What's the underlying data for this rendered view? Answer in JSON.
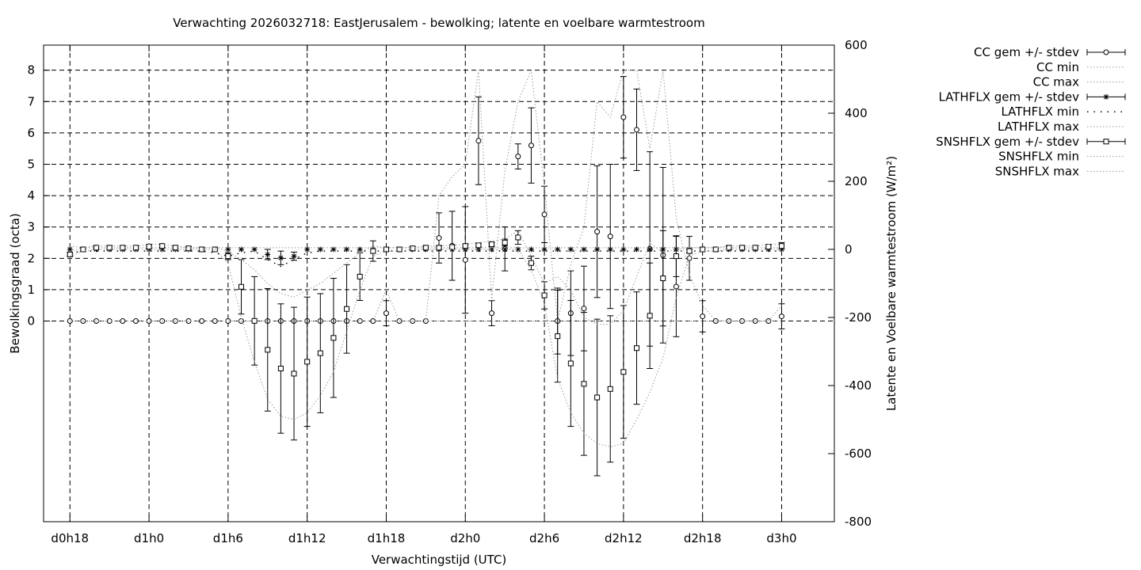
{
  "chart_data": {
    "type": "line",
    "title": "Verwachting 2026032718: EastJerusalem - bewolking; latente en voelbare warmtestroom",
    "xlabel": "Verwachtingstijd (UTC)",
    "ylabel": "Bewolkingsgraad (octa)",
    "y2label": "Latente en Voelbare warmtestroom (W/m²)",
    "xlim": [
      -2,
      58
    ],
    "ylim": [
      -6.4,
      8.8
    ],
    "y2lim": [
      -800,
      600
    ],
    "grid": true,
    "legend": "outside-right",
    "xticks": [
      {
        "x": 0,
        "label": "d0h18"
      },
      {
        "x": 6,
        "label": "d1h0"
      },
      {
        "x": 12,
        "label": "d1h6"
      },
      {
        "x": 18,
        "label": "d1h12"
      },
      {
        "x": 24,
        "label": "d1h18"
      },
      {
        "x": 30,
        "label": "d2h0"
      },
      {
        "x": 36,
        "label": "d2h6"
      },
      {
        "x": 42,
        "label": "d2h12"
      },
      {
        "x": 48,
        "label": "d2h18"
      },
      {
        "x": 54,
        "label": "d3h0"
      }
    ],
    "yticks": [
      0,
      1,
      2,
      3,
      4,
      5,
      6,
      7,
      8
    ],
    "y2ticks": [
      -800,
      -600,
      -400,
      -200,
      0,
      200,
      400,
      600
    ],
    "x": [
      0,
      1,
      2,
      3,
      4,
      5,
      6,
      7,
      8,
      9,
      10,
      11,
      12,
      13,
      14,
      15,
      16,
      17,
      18,
      19,
      20,
      21,
      22,
      23,
      24,
      25,
      26,
      27,
      28,
      29,
      30,
      31,
      32,
      33,
      34,
      35,
      36,
      37,
      38,
      39,
      40,
      41,
      42,
      43,
      44,
      45,
      46,
      47,
      48,
      49,
      50,
      51,
      52,
      53,
      54
    ],
    "series": [
      {
        "name": "CC gem +/- stdev",
        "axis": "y",
        "style": "errorbars-circle",
        "mean": [
          0,
          0,
          0,
          0,
          0,
          0,
          0,
          0,
          0,
          0,
          0,
          0,
          0,
          0,
          0,
          0,
          0,
          0,
          0,
          0,
          0,
          0,
          0,
          0,
          0.25,
          0,
          0,
          0,
          2.65,
          2.4,
          1.95,
          5.75,
          0.25,
          2.3,
          5.25,
          5.6,
          3.4,
          0,
          0.25,
          0.4,
          2.85,
          2.7,
          6.5,
          6.1,
          2.3,
          2.1,
          1.1,
          2.0,
          0.15,
          0,
          0,
          0,
          0,
          0,
          0.15
        ],
        "stdev": [
          0,
          0,
          0,
          0,
          0,
          0,
          0,
          0,
          0,
          0,
          0,
          0,
          0,
          0,
          0,
          0,
          0,
          0,
          0,
          0,
          0,
          0,
          0,
          0,
          0.4,
          0,
          0,
          0,
          0.8,
          1.1,
          1.7,
          1.4,
          0.4,
          0.7,
          0.4,
          1.2,
          0.9,
          1.05,
          1.35,
          1.35,
          2.1,
          2.3,
          1.3,
          1.3,
          3.1,
          2.8,
          1.6,
          0.7,
          0.5,
          0,
          0,
          0,
          0,
          0,
          0.4
        ]
      },
      {
        "name": "CC min",
        "axis": "y",
        "style": "dotted",
        "values": [
          0,
          0,
          0,
          0,
          0,
          0,
          0,
          0,
          0,
          0,
          0,
          0,
          0,
          0,
          0,
          0,
          0,
          0,
          0,
          0,
          0,
          0,
          0,
          0,
          0,
          0,
          0,
          0,
          0,
          0,
          0,
          0,
          0,
          0,
          0,
          0,
          0,
          0,
          0,
          0,
          0,
          0,
          0,
          0,
          0,
          0,
          0,
          0,
          0,
          0,
          0,
          0,
          0,
          0,
          0
        ]
      },
      {
        "name": "CC max",
        "axis": "y",
        "style": "dotted",
        "values": [
          0,
          0,
          0,
          0,
          0,
          0,
          0,
          0,
          0,
          0,
          0,
          0,
          0,
          0,
          0,
          0,
          0,
          0,
          0,
          0,
          0,
          0,
          0,
          0,
          1,
          0,
          0,
          0,
          4,
          4.6,
          5,
          8,
          0.7,
          4.8,
          7,
          8,
          4.3,
          0,
          1.8,
          3,
          7,
          6.5,
          8,
          8,
          5.5,
          8,
          3.3,
          1.5,
          0.5,
          0,
          0,
          0,
          0,
          0,
          0.5
        ]
      },
      {
        "name": "LATHFLX gem +/- stdev",
        "axis": "y2",
        "style": "errorbars-star",
        "mean": [
          0,
          0,
          0,
          0,
          0,
          0,
          0,
          0,
          0,
          0,
          0,
          0,
          0,
          0,
          0,
          -15,
          -25,
          -20,
          0,
          0,
          0,
          0,
          0,
          0,
          0,
          0,
          0,
          0,
          0,
          0,
          0,
          0,
          0,
          0,
          0,
          0,
          0,
          0,
          0,
          0,
          0,
          0,
          0,
          0,
          0,
          0,
          0,
          0,
          0,
          0,
          0,
          0,
          0,
          0,
          0
        ],
        "stdev": [
          0,
          0,
          0,
          0,
          0,
          0,
          0,
          0,
          0,
          0,
          0,
          0,
          0,
          0,
          0,
          15,
          20,
          12,
          0,
          0,
          0,
          0,
          0,
          0,
          0,
          0,
          0,
          0,
          0,
          0,
          0,
          0,
          0,
          0,
          0,
          0,
          0,
          0,
          0,
          0,
          0,
          0,
          0,
          0,
          0,
          0,
          0,
          0,
          0,
          0,
          0,
          0,
          0,
          0,
          0
        ]
      },
      {
        "name": "LATHFLX min",
        "axis": "y2",
        "style": "dots-sparse",
        "values": [
          -10,
          -5,
          -5,
          -5,
          -5,
          -5,
          -5,
          -5,
          -5,
          -5,
          -5,
          -10,
          -20,
          -10,
          -5,
          -30,
          -50,
          -30,
          -10,
          -5,
          -5,
          -5,
          -5,
          -5,
          -5,
          -5,
          -5,
          -5,
          -5,
          -5,
          -5,
          -5,
          -5,
          -5,
          -5,
          -5,
          -5,
          -5,
          -5,
          -5,
          -5,
          -5,
          -5,
          -5,
          -5,
          -5,
          -5,
          -5,
          -5,
          -5,
          -5,
          -5,
          -5,
          -5,
          -5
        ]
      },
      {
        "name": "LATHFLX max",
        "axis": "y2",
        "style": "dotted",
        "values": [
          10,
          5,
          5,
          5,
          5,
          5,
          5,
          5,
          5,
          5,
          5,
          5,
          5,
          5,
          5,
          5,
          5,
          5,
          5,
          5,
          5,
          5,
          5,
          5,
          5,
          5,
          5,
          5,
          5,
          5,
          5,
          5,
          5,
          5,
          5,
          5,
          5,
          5,
          5,
          5,
          5,
          5,
          5,
          5,
          5,
          5,
          5,
          5,
          5,
          5,
          5,
          5,
          5,
          5,
          5
        ]
      },
      {
        "name": "SNSHFLX gem +/- stdev",
        "axis": "y2",
        "style": "errorbars-square",
        "mean": [
          -15,
          0,
          5,
          5,
          5,
          5,
          8,
          10,
          5,
          3,
          0,
          0,
          -20,
          -110,
          -210,
          -295,
          -350,
          -365,
          -330,
          -305,
          -260,
          -175,
          -80,
          -5,
          0,
          0,
          3,
          5,
          5,
          7,
          10,
          12,
          15,
          20,
          35,
          -40,
          -135,
          -255,
          -335,
          -395,
          -435,
          -410,
          -360,
          -290,
          -195,
          -85,
          -20,
          -5,
          0,
          0,
          5,
          5,
          5,
          8,
          10
        ],
        "stdev": [
          5,
          5,
          5,
          5,
          5,
          5,
          5,
          5,
          5,
          5,
          5,
          5,
          10,
          80,
          130,
          180,
          190,
          195,
          190,
          175,
          175,
          130,
          70,
          30,
          5,
          5,
          5,
          5,
          5,
          5,
          5,
          5,
          5,
          10,
          20,
          20,
          40,
          135,
          185,
          210,
          230,
          215,
          195,
          165,
          155,
          140,
          60,
          5,
          5,
          5,
          5,
          5,
          5,
          5,
          10
        ]
      },
      {
        "name": "SNSHFLX min",
        "axis": "y2",
        "style": "dotted",
        "values": [
          -20,
          -5,
          0,
          0,
          0,
          0,
          0,
          0,
          0,
          0,
          0,
          0,
          -40,
          -200,
          -330,
          -440,
          -490,
          -500,
          -480,
          -430,
          -360,
          -240,
          -120,
          -20,
          -5,
          -5,
          0,
          0,
          0,
          0,
          0,
          0,
          0,
          0,
          0,
          -60,
          -160,
          -380,
          -480,
          -540,
          -570,
          -580,
          -570,
          -500,
          -420,
          -320,
          -140,
          -20,
          -5,
          -5,
          0,
          0,
          0,
          0,
          0
        ]
      },
      {
        "name": "SNSHFLX max",
        "axis": "y2",
        "style": "dotted",
        "values": [
          -5,
          5,
          10,
          10,
          10,
          10,
          15,
          15,
          10,
          5,
          5,
          5,
          -5,
          -30,
          -60,
          -100,
          -130,
          -140,
          -120,
          -100,
          -70,
          -40,
          -10,
          10,
          5,
          5,
          5,
          10,
          10,
          12,
          15,
          20,
          25,
          30,
          55,
          -20,
          -100,
          -80,
          -120,
          -200,
          -220,
          -220,
          -180,
          -80,
          20,
          -10,
          0,
          5,
          5,
          5,
          10,
          10,
          10,
          15,
          15
        ]
      }
    ]
  }
}
